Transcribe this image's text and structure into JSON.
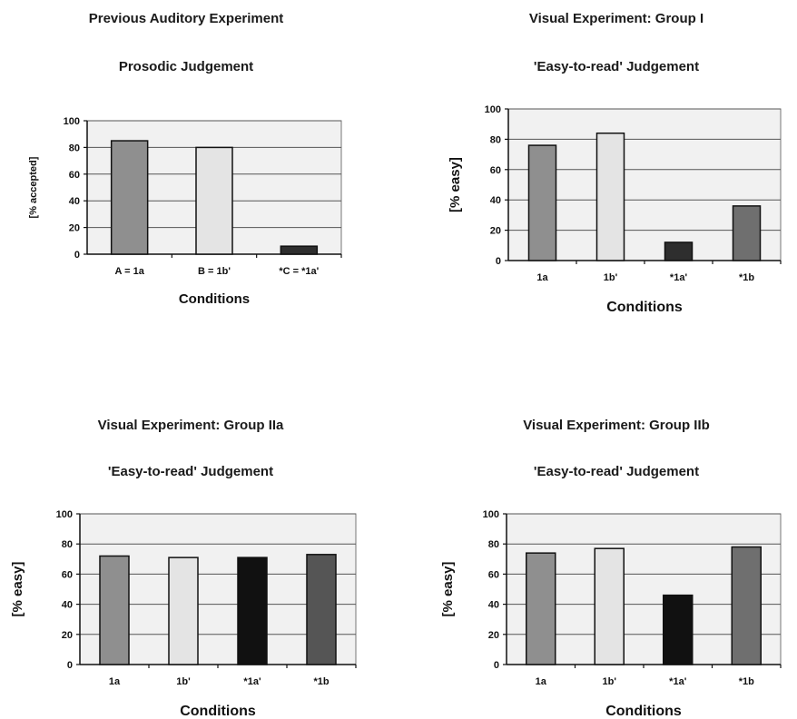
{
  "chart_data": [
    {
      "type": "bar",
      "title": "Previous Auditory Experiment",
      "subtitle": "Prosodic Judgement",
      "xlabel": "Conditions",
      "ylabel": "[% accepted]",
      "ylim": [
        0,
        100
      ],
      "yticks": [
        0,
        20,
        40,
        60,
        80,
        100
      ],
      "grid": true,
      "categories": [
        "A = 1a",
        "B = 1b'",
        "*C = *1a'"
      ],
      "values": [
        85,
        80,
        6
      ],
      "bar_colors": [
        "#8f8f8f",
        "#e4e4e4",
        "#2e2e2e"
      ]
    },
    {
      "type": "bar",
      "title": "Visual Experiment: Group I",
      "subtitle": "'Easy-to-read'  Judgement",
      "xlabel": "Conditions",
      "ylabel": "[% easy]",
      "ylim": [
        0,
        100
      ],
      "yticks": [
        0,
        20,
        40,
        60,
        80,
        100
      ],
      "grid": true,
      "categories": [
        "1a",
        "1b'",
        "*1a'",
        "*1b"
      ],
      "values": [
        76,
        84,
        12,
        36
      ],
      "bar_colors": [
        "#8f8f8f",
        "#e4e4e4",
        "#2e2e2e",
        "#6f6f6f"
      ]
    },
    {
      "type": "bar",
      "title": "Visual Experiment: Group IIa",
      "subtitle": "'Easy-to-read'  Judgement",
      "xlabel": "Conditions",
      "ylabel": "[% easy]",
      "ylim": [
        0,
        100
      ],
      "yticks": [
        0,
        20,
        40,
        60,
        80,
        100
      ],
      "grid": true,
      "categories": [
        "1a",
        "1b'",
        "*1a'",
        "*1b"
      ],
      "values": [
        72,
        71,
        71,
        73
      ],
      "bar_colors": [
        "#8f8f8f",
        "#e4e4e4",
        "#111111",
        "#555555"
      ]
    },
    {
      "type": "bar",
      "title": "Visual Experiment: Group IIb",
      "subtitle": "'Easy-to-read'  Judgement",
      "xlabel": "Conditions",
      "ylabel": "[% easy]",
      "ylim": [
        0,
        100
      ],
      "yticks": [
        0,
        20,
        40,
        60,
        80,
        100
      ],
      "grid": true,
      "categories": [
        "1a",
        "1b'",
        "*1a'",
        "*1b"
      ],
      "values": [
        74,
        77,
        46,
        78
      ],
      "bar_colors": [
        "#8f8f8f",
        "#e4e4e4",
        "#111111",
        "#6f6f6f"
      ]
    }
  ]
}
